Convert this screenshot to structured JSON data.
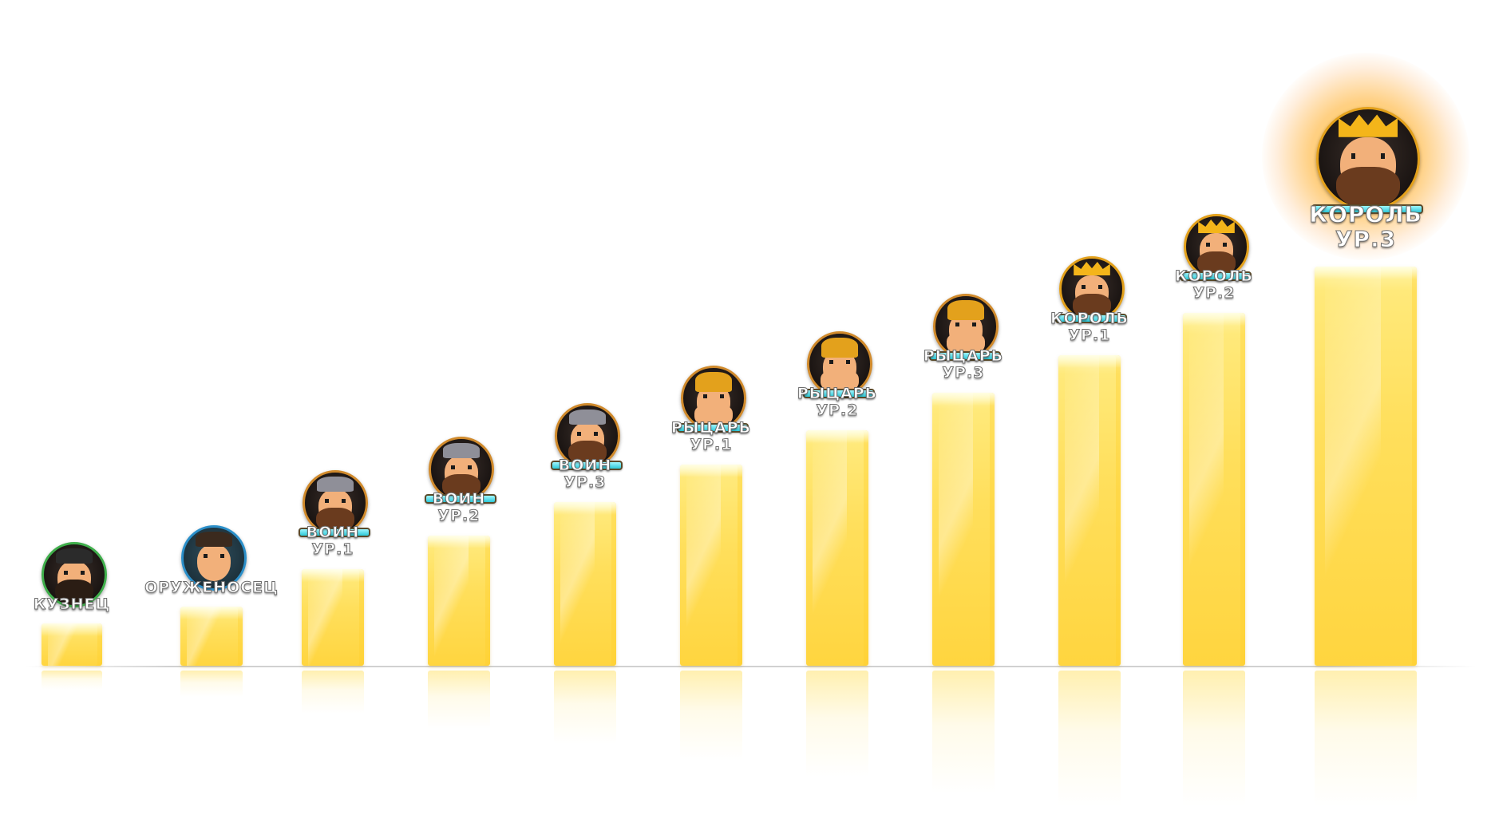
{
  "chart_data": {
    "type": "bar",
    "title": "",
    "xlabel": "",
    "ylabel": "",
    "categories": [
      {
        "name": "КУЗНЕЦ",
        "level": "",
        "avatar": "blacksmith-icon",
        "value": 1.0
      },
      {
        "name": "ОРУЖЕНОСЕЦ",
        "level": "",
        "avatar": "squire-icon",
        "value": 1.4
      },
      {
        "name": "ВОИН",
        "level": "УР.1",
        "avatar": "warrior-icon",
        "value": 2.3
      },
      {
        "name": "ВОИН",
        "level": "УР.2",
        "avatar": "warrior-icon",
        "value": 3.1
      },
      {
        "name": "ВОИН",
        "level": "УР.3",
        "avatar": "warrior-icon",
        "value": 3.9
      },
      {
        "name": "РЫЦАРЬ",
        "level": "УР.1",
        "avatar": "knight-icon",
        "value": 4.8
      },
      {
        "name": "РЫЦАРЬ",
        "level": "УР.2",
        "avatar": "knight-icon",
        "value": 5.6
      },
      {
        "name": "РЫЦАРЬ",
        "level": "УР.3",
        "avatar": "knight-icon",
        "value": 6.5
      },
      {
        "name": "КОРОЛЬ",
        "level": "УР.1",
        "avatar": "king-icon",
        "value": 7.4
      },
      {
        "name": "КОРОЛЬ",
        "level": "УР.2",
        "avatar": "king-icon",
        "value": 8.4
      },
      {
        "name": "КОРОЛЬ",
        "level": "УР.3",
        "avatar": "king-icon",
        "value": 9.5,
        "highlighted": true
      }
    ],
    "ylim": [
      0,
      10
    ],
    "grid": false,
    "legend": "none"
  },
  "colors": {
    "bar": "#ffd94a",
    "bar_highlight": "#fff4a6",
    "label_fill": "#ffffff",
    "label_stroke": "#6d6d6d",
    "xp_bar": "#2dc9d8",
    "glow": "#ffb020"
  }
}
